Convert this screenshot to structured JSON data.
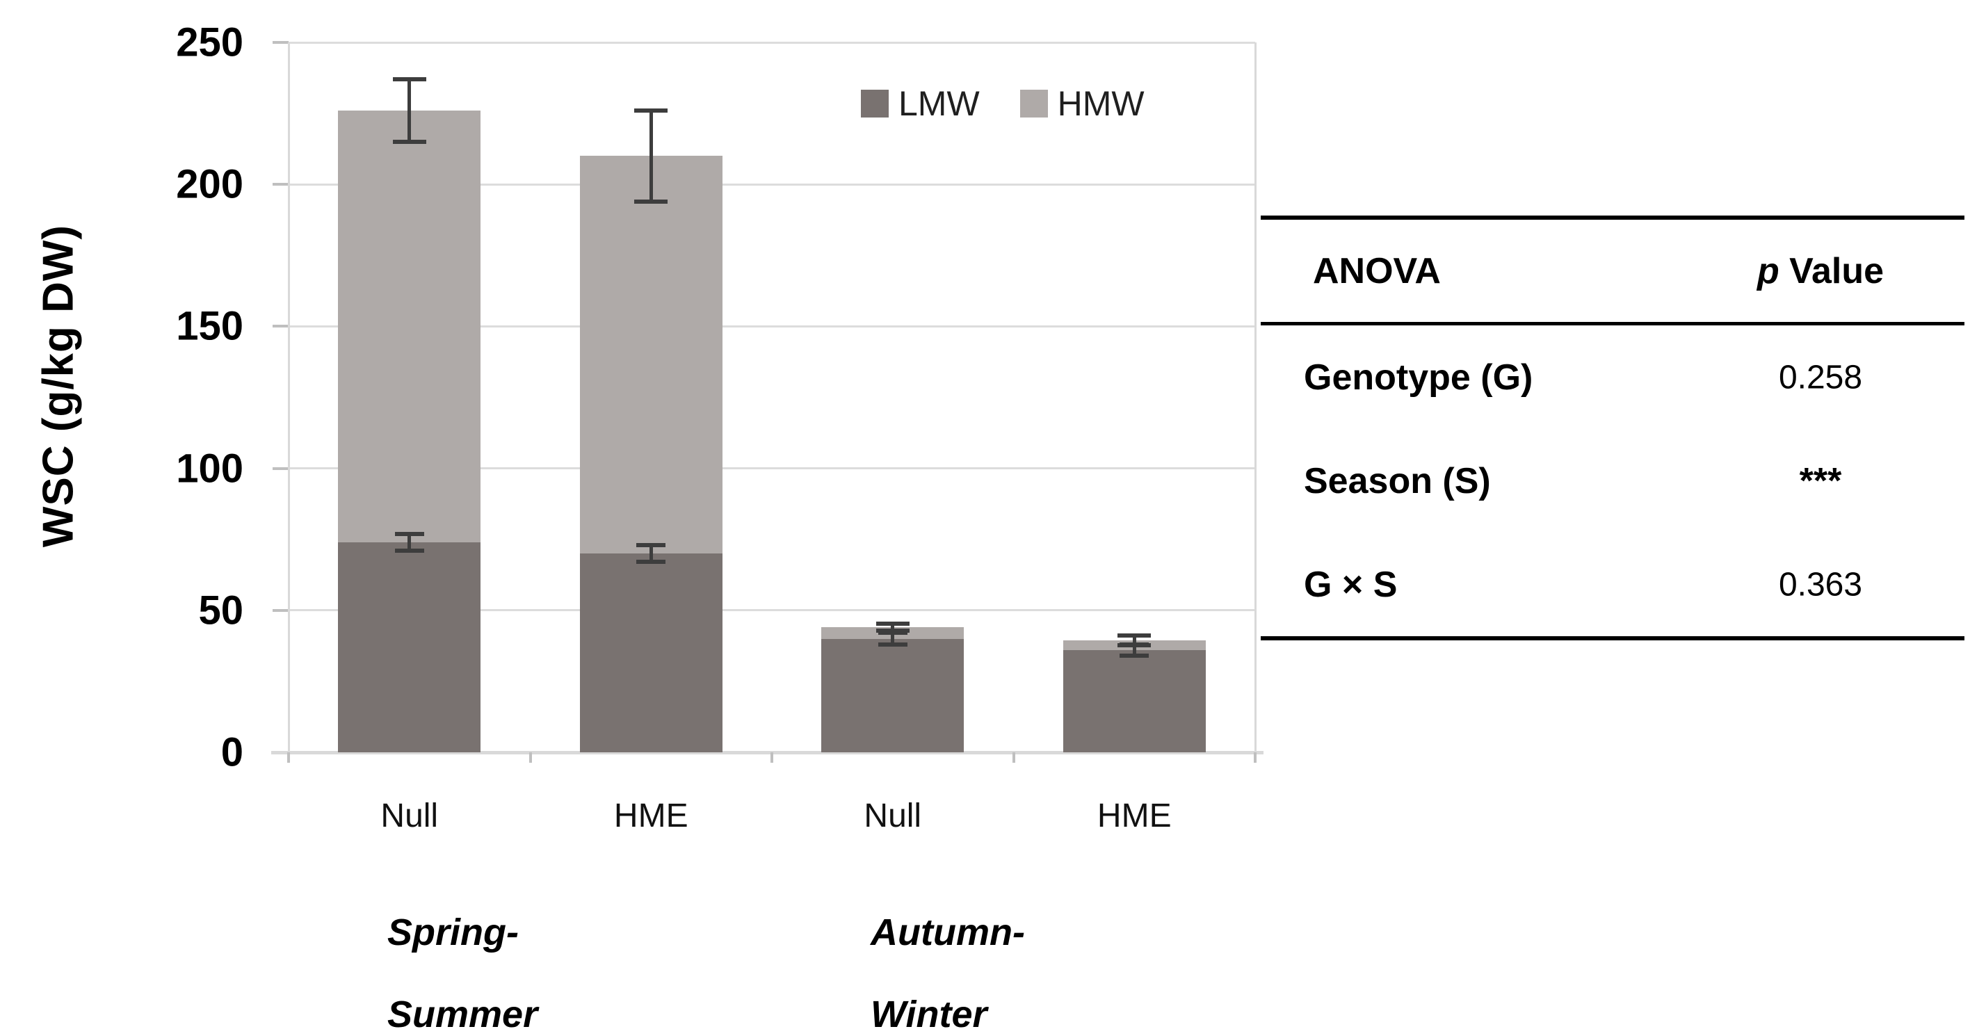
{
  "colors": {
    "lmw": "#797270",
    "hmw": "#afaaa8",
    "error_bar": "#3d3d3d",
    "gridline": "#dcdcdc",
    "axis_line": "#d9d9d9",
    "tick_stub": "#bfbfbf"
  },
  "chart_data": {
    "type": "bar",
    "stacked": true,
    "title": "",
    "ylabel": "WSC (g/kg DW)",
    "xlabel": "",
    "ylim": [
      0,
      250
    ],
    "yticks": [
      0,
      50,
      100,
      150,
      200,
      250
    ],
    "grid": true,
    "legend_position": "top-inside",
    "categories": [
      "Null",
      "HME",
      "Null",
      "HME"
    ],
    "group_labels": [
      [
        "Spring-",
        "Summer"
      ],
      [
        "Autumn-",
        "Winter"
      ]
    ],
    "series": [
      {
        "name": "LMW",
        "color": "#797270",
        "values": [
          74,
          70,
          40,
          36
        ],
        "errors": [
          3,
          3,
          2,
          2
        ]
      },
      {
        "name": "HMW",
        "color": "#afaaa8",
        "values": [
          152,
          140,
          4,
          3.4
        ],
        "errors": null
      }
    ],
    "stack_totals": [
      226,
      210,
      44,
      39.4
    ],
    "stack_total_errors": [
      11,
      16,
      1.2,
      1.7
    ]
  },
  "anova": {
    "title_col": "ANOVA",
    "value_col_italic": "p",
    "value_col_rest": " Value",
    "rows": [
      {
        "label": "Genotype (G)",
        "value": "0.258",
        "significant": false
      },
      {
        "label": "Season (S)",
        "value": "***",
        "significant": true
      },
      {
        "label": "G × S",
        "value": "0.363",
        "significant": false
      }
    ]
  }
}
